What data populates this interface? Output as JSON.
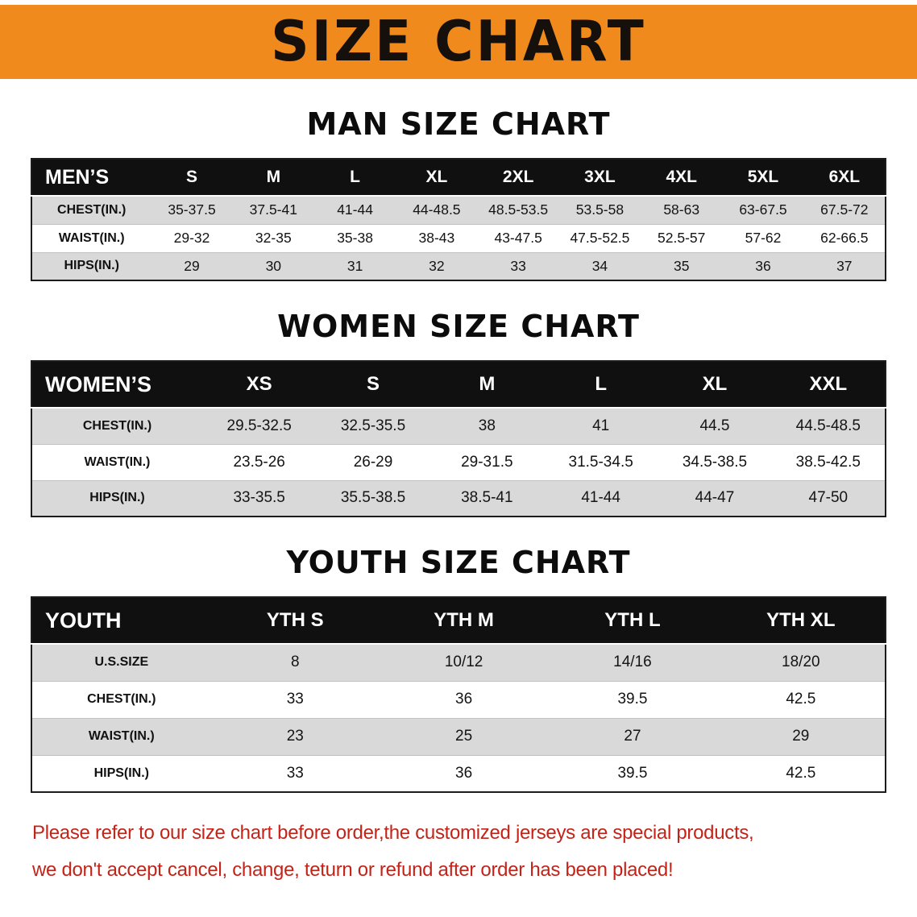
{
  "banner": {
    "title": "SIZE CHART"
  },
  "sections": [
    {
      "heading": "MAN SIZE CHART",
      "table": {
        "header": [
          "MEN’S",
          "S",
          "M",
          "L",
          "XL",
          "2XL",
          "3XL",
          "4XL",
          "5XL",
          "6XL"
        ],
        "rows": [
          [
            "CHEST(IN.)",
            "35-37.5",
            "37.5-41",
            "41-44",
            "44-48.5",
            "48.5-53.5",
            "53.5-58",
            "58-63",
            "63-67.5",
            "67.5-72"
          ],
          [
            "WAIST(IN.)",
            "29-32",
            "32-35",
            "35-38",
            "38-43",
            "43-47.5",
            "47.5-52.5",
            "52.5-57",
            "57-62",
            "62-66.5"
          ],
          [
            "HIPS(IN.)",
            "29",
            "30",
            "31",
            "32",
            "33",
            "34",
            "35",
            "36",
            "37"
          ]
        ]
      }
    },
    {
      "heading": "WOMEN SIZE CHART",
      "table": {
        "header": [
          "WOMEN’S",
          "XS",
          "S",
          "M",
          "L",
          "XL",
          "XXL"
        ],
        "rows": [
          [
            "CHEST(IN.)",
            "29.5-32.5",
            "32.5-35.5",
            "38",
            "41",
            "44.5",
            "44.5-48.5"
          ],
          [
            "WAIST(IN.)",
            "23.5-26",
            "26-29",
            "29-31.5",
            "31.5-34.5",
            "34.5-38.5",
            "38.5-42.5"
          ],
          [
            "HIPS(IN.)",
            "33-35.5",
            "35.5-38.5",
            "38.5-41",
            "41-44",
            "44-47",
            "47-50"
          ]
        ]
      }
    },
    {
      "heading": "YOUTH SIZE CHART",
      "table": {
        "header": [
          "YOUTH",
          "YTH S",
          "YTH M",
          "YTH L",
          "YTH XL"
        ],
        "rows": [
          [
            "U.S.SIZE",
            "8",
            "10/12",
            "14/16",
            "18/20"
          ],
          [
            "CHEST(IN.)",
            "33",
            "36",
            "39.5",
            "42.5"
          ],
          [
            "WAIST(IN.)",
            "23",
            "25",
            "27",
            "29"
          ],
          [
            "HIPS(IN.)",
            "33",
            "36",
            "39.5",
            "42.5"
          ]
        ]
      }
    }
  ],
  "disclaimer": {
    "line1": "Please refer to our size chart before order,the customized jerseys are special products,",
    "line2": "we don't accept cancel, change, teturn or refund after order has been placed!"
  },
  "colors": {
    "banner_bg": "#f08a1c",
    "header_bg": "#101010",
    "stripe_bg": "#d9d9d9",
    "disclaimer_text": "#c42318"
  }
}
